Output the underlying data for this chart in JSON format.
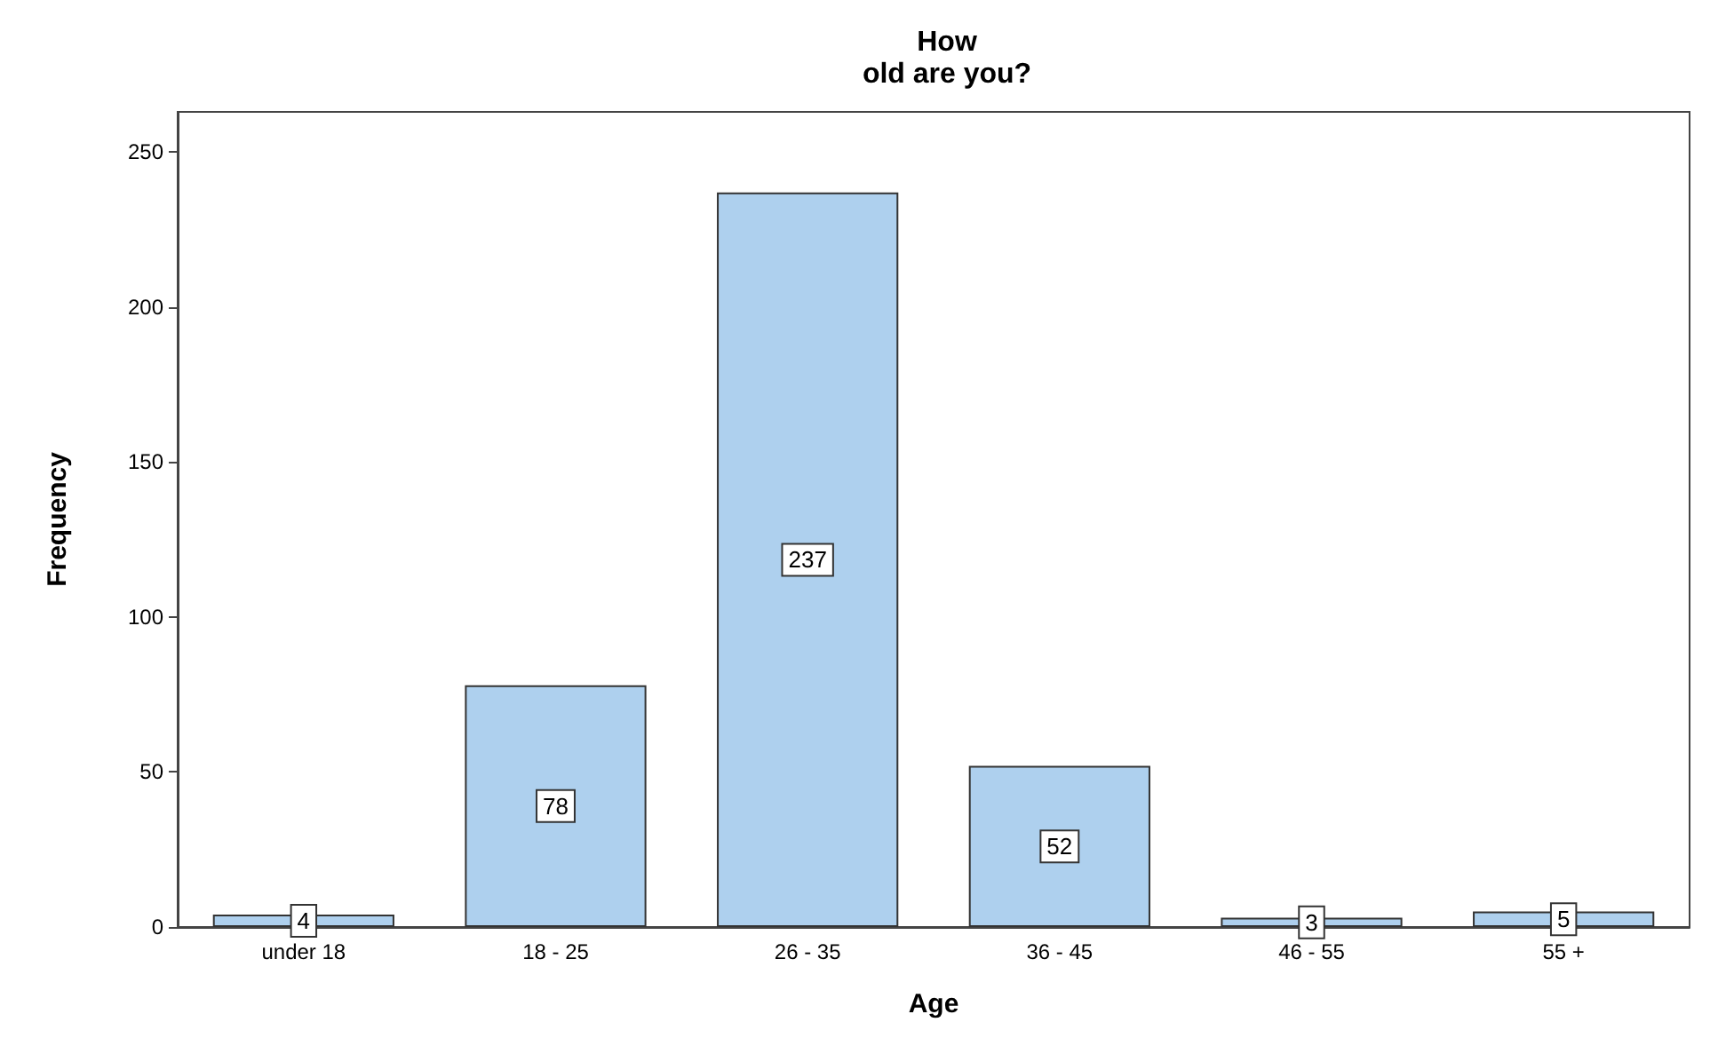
{
  "chart_data": {
    "type": "bar",
    "title": "How\nold are you?",
    "xlabel": "Age",
    "ylabel": "Frequency",
    "categories": [
      "under 18",
      "18 - 25",
      "26 - 35",
      "36 - 45",
      "46 - 55",
      "55 +"
    ],
    "values": [
      4,
      78,
      237,
      52,
      3,
      5
    ],
    "color": "#aed0ee",
    "ylim": [
      0,
      263
    ],
    "yticks": [
      0,
      50,
      100,
      150,
      200,
      250
    ],
    "grid": false,
    "data_labels": true
  }
}
